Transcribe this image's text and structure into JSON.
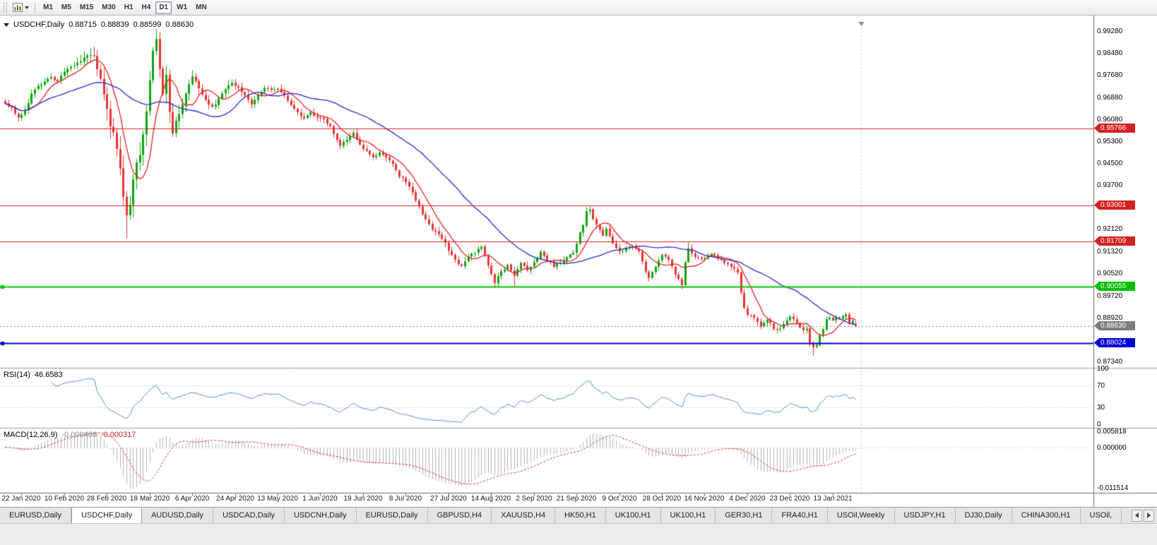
{
  "toolbar": {
    "timeframes": [
      {
        "label": "M1",
        "active": false
      },
      {
        "label": "M5",
        "active": false
      },
      {
        "label": "M15",
        "active": false
      },
      {
        "label": "M30",
        "active": false
      },
      {
        "label": "H1",
        "active": false
      },
      {
        "label": "H4",
        "active": false
      },
      {
        "label": "D1",
        "active": true
      },
      {
        "label": "W1",
        "active": false
      },
      {
        "label": "MN",
        "active": false
      }
    ]
  },
  "chart": {
    "title": {
      "symbol": "USDCHF,Daily",
      "open": "0.88715",
      "high": "0.88839",
      "low": "0.88599",
      "close": "0.88630"
    },
    "price_axis": {
      "grid_labels": [
        "0.99280",
        "0.98480",
        "0.97680",
        "0.96880",
        "0.96080",
        "0.95300",
        "0.94500",
        "0.93700",
        "0.92120",
        "0.91320",
        "0.90520",
        "0.89720",
        "0.88920",
        "0.87340"
      ]
    },
    "hlines": [
      {
        "label": "0.95766",
        "value": 0.95766,
        "color": "#d42020",
        "width": 1
      },
      {
        "label": "0.93001",
        "value": 0.93001,
        "color": "#d42020",
        "width": 1
      },
      {
        "label": "0.91709",
        "value": 0.91709,
        "color": "#d42020",
        "width": 1
      },
      {
        "label": "0.90055",
        "value": 0.90055,
        "color": "#00c000",
        "width": 2,
        "handle": true
      },
      {
        "label": "0.88024",
        "value": 0.88024,
        "color": "#0000d2",
        "width": 2,
        "handle": true
      }
    ],
    "current_price": {
      "label": "0.88630",
      "value": 0.8863,
      "color": "#7d7d7d"
    },
    "date_axis": {
      "labels": [
        {
          "text": "22 Jan 2020",
          "bar": 5
        },
        {
          "text": "10 Feb 2020",
          "bar": 18
        },
        {
          "text": "28 Feb 2020",
          "bar": 31
        },
        {
          "text": "18 Mar 2020",
          "bar": 44
        },
        {
          "text": "6 Apr 2020",
          "bar": 57
        },
        {
          "text": "24 Apr 2020",
          "bar": 70
        },
        {
          "text": "13 May 2020",
          "bar": 83
        },
        {
          "text": "1 Jun 2020",
          "bar": 96
        },
        {
          "text": "19 Jun 2020",
          "bar": 109
        },
        {
          "text": "8 Jul 2020",
          "bar": 122
        },
        {
          "text": "27 Jul 2020",
          "bar": 135
        },
        {
          "text": "14 Aug 2020",
          "bar": 148
        },
        {
          "text": "2 Sep 2020",
          "bar": 161
        },
        {
          "text": "21 Sep 2020",
          "bar": 174
        },
        {
          "text": "9 Oct 2020",
          "bar": 187
        },
        {
          "text": "28 Oct 2020",
          "bar": 200
        },
        {
          "text": "16 Nov 2020",
          "bar": 213
        },
        {
          "text": "4 Dec 2020",
          "bar": 226
        },
        {
          "text": "23 Dec 2020",
          "bar": 239
        },
        {
          "text": "13 Jan 2021",
          "bar": 252
        }
      ]
    }
  },
  "indicators": {
    "rsi": {
      "name": "RSI(14)",
      "value": "46.6583",
      "color": "#4a8fd0",
      "period": 14,
      "axis_labels": [
        {
          "text": "100",
          "value": 100
        },
        {
          "text": "70",
          "value": 70
        },
        {
          "text": "30",
          "value": 30
        },
        {
          "text": "0",
          "value": 0
        }
      ],
      "levels": [
        70,
        30
      ]
    },
    "macd": {
      "name": "MACD(12,26,9)",
      "value_main": "-0.000466",
      "value_signal": "-0.000317",
      "fast": 12,
      "slow": 26,
      "signal": 9,
      "hist_color": "#b2b2b2",
      "signal_color": "#d23333",
      "axis_labels": {
        "max": "0.005818",
        "zero": "0.000000",
        "min": "-0.011514"
      }
    }
  },
  "chart_data": {
    "type": "candlestick",
    "symbol": "USDCHF",
    "timeframe": "Daily",
    "bars_visible": 260,
    "last_bar": {
      "open": 0.88715,
      "high": 0.88839,
      "low": 0.88599,
      "close": 0.8863
    },
    "price_range_view": {
      "top": 0.9965,
      "bottom": 0.8716
    },
    "colors": {
      "bull": "#0da40d",
      "bear": "#e53535",
      "ma_fast": "#e32222",
      "ma_slow": "#2929cc"
    },
    "moving_averages": [
      {
        "period": 8,
        "color": "#e32222"
      },
      {
        "period": 34,
        "color": "#2929cc"
      }
    ],
    "close_keyframes": [
      [
        0,
        0.967
      ],
      [
        2,
        0.9652
      ],
      [
        4,
        0.9618
      ],
      [
        6,
        0.9645
      ],
      [
        8,
        0.97
      ],
      [
        10,
        0.9728
      ],
      [
        12,
        0.9745
      ],
      [
        14,
        0.9762
      ],
      [
        16,
        0.975
      ],
      [
        18,
        0.9778
      ],
      [
        20,
        0.98
      ],
      [
        23,
        0.9822
      ],
      [
        26,
        0.9846
      ],
      [
        27,
        0.9838
      ],
      [
        28,
        0.9792
      ],
      [
        29,
        0.9762
      ],
      [
        30,
        0.9705
      ],
      [
        31,
        0.9648
      ],
      [
        32,
        0.9582
      ],
      [
        33,
        0.956
      ],
      [
        34,
        0.9502
      ],
      [
        35,
        0.9434
      ],
      [
        36,
        0.933
      ],
      [
        37,
        0.9262
      ],
      [
        38,
        0.93
      ],
      [
        39,
        0.9392
      ],
      [
        40,
        0.945
      ],
      [
        41,
        0.9482
      ],
      [
        42,
        0.956
      ],
      [
        43,
        0.9642
      ],
      [
        44,
        0.9752
      ],
      [
        45,
        0.9862
      ],
      [
        46,
        0.9898
      ],
      [
        47,
        0.9792
      ],
      [
        48,
        0.97
      ],
      [
        49,
        0.9772
      ],
      [
        50,
        0.964
      ],
      [
        51,
        0.9562
      ],
      [
        52,
        0.961
      ],
      [
        53,
        0.9632
      ],
      [
        55,
        0.97
      ],
      [
        57,
        0.9768
      ],
      [
        59,
        0.9722
      ],
      [
        61,
        0.9682
      ],
      [
        63,
        0.9652
      ],
      [
        65,
        0.9682
      ],
      [
        67,
        0.972
      ],
      [
        69,
        0.9744
      ],
      [
        71,
        0.9726
      ],
      [
        73,
        0.97
      ],
      [
        75,
        0.9662
      ],
      [
        77,
        0.97
      ],
      [
        79,
        0.9722
      ],
      [
        81,
        0.9714
      ],
      [
        83,
        0.9718
      ],
      [
        85,
        0.97
      ],
      [
        87,
        0.9662
      ],
      [
        89,
        0.9632
      ],
      [
        91,
        0.9612
      ],
      [
        93,
        0.964
      ],
      [
        95,
        0.9614
      ],
      [
        97,
        0.9608
      ],
      [
        99,
        0.9586
      ],
      [
        100,
        0.956
      ],
      [
        102,
        0.9512
      ],
      [
        104,
        0.954
      ],
      [
        106,
        0.9562
      ],
      [
        108,
        0.952
      ],
      [
        110,
        0.9496
      ],
      [
        112,
        0.9474
      ],
      [
        114,
        0.949
      ],
      [
        116,
        0.9472
      ],
      [
        118,
        0.9452
      ],
      [
        120,
        0.9404
      ],
      [
        122,
        0.9386
      ],
      [
        124,
        0.9342
      ],
      [
        126,
        0.9292
      ],
      [
        128,
        0.9252
      ],
      [
        130,
        0.9212
      ],
      [
        132,
        0.9192
      ],
      [
        134,
        0.9162
      ],
      [
        135,
        0.9138
      ],
      [
        137,
        0.9102
      ],
      [
        139,
        0.9082
      ],
      [
        141,
        0.9112
      ],
      [
        143,
        0.9132
      ],
      [
        145,
        0.9152
      ],
      [
        147,
        0.9082
      ],
      [
        149,
        0.9022
      ],
      [
        151,
        0.9062
      ],
      [
        153,
        0.9082
      ],
      [
        155,
        0.9042
      ],
      [
        157,
        0.9092
      ],
      [
        159,
        0.9062
      ],
      [
        161,
        0.9092
      ],
      [
        163,
        0.9132
      ],
      [
        165,
        0.9102
      ],
      [
        167,
        0.9082
      ],
      [
        169,
        0.9092
      ],
      [
        171,
        0.9112
      ],
      [
        173,
        0.9132
      ],
      [
        174,
        0.9162
      ],
      [
        175,
        0.9202
      ],
      [
        176,
        0.9232
      ],
      [
        177,
        0.9282
      ],
      [
        178,
        0.9288
      ],
      [
        179,
        0.9252
      ],
      [
        180,
        0.9232
      ],
      [
        181,
        0.9212
      ],
      [
        182,
        0.9192
      ],
      [
        183,
        0.9212
      ],
      [
        185,
        0.9162
      ],
      [
        187,
        0.9132
      ],
      [
        189,
        0.9142
      ],
      [
        191,
        0.9152
      ],
      [
        193,
        0.9132
      ],
      [
        195,
        0.9062
      ],
      [
        196,
        0.9042
      ],
      [
        198,
        0.9082
      ],
      [
        200,
        0.9122
      ],
      [
        202,
        0.9102
      ],
      [
        204,
        0.9052
      ],
      [
        206,
        0.9012
      ],
      [
        207,
        0.9095
      ],
      [
        208,
        0.9142
      ],
      [
        210,
        0.9112
      ],
      [
        213,
        0.9106
      ],
      [
        215,
        0.9122
      ],
      [
        217,
        0.9112
      ],
      [
        219,
        0.9092
      ],
      [
        221,
        0.9082
      ],
      [
        223,
        0.9062
      ],
      [
        224,
        0.8982
      ],
      [
        225,
        0.8932
      ],
      [
        226,
        0.8906
      ],
      [
        228,
        0.8892
      ],
      [
        230,
        0.8866
      ],
      [
        232,
        0.8886
      ],
      [
        234,
        0.8856
      ],
      [
        236,
        0.8852
      ],
      [
        238,
        0.8882
      ],
      [
        239,
        0.8902
      ],
      [
        240,
        0.8892
      ],
      [
        241,
        0.8872
      ],
      [
        242,
        0.8856
      ],
      [
        243,
        0.8846
      ],
      [
        244,
        0.8852
      ],
      [
        245,
        0.8802
      ],
      [
        246,
        0.8786
      ],
      [
        247,
        0.8792
      ],
      [
        248,
        0.8832
      ],
      [
        249,
        0.8852
      ],
      [
        250,
        0.8886
      ],
      [
        251,
        0.8892
      ],
      [
        252,
        0.8882
      ],
      [
        253,
        0.8896
      ],
      [
        254,
        0.8886
      ],
      [
        255,
        0.8902
      ],
      [
        256,
        0.8906
      ],
      [
        257,
        0.8872
      ],
      [
        258,
        0.8886
      ],
      [
        259,
        0.8863
      ]
    ],
    "forced_extremes": [
      {
        "bar": 4,
        "low": 0.9612
      },
      {
        "bar": 26,
        "high": 0.9848
      },
      {
        "bar": 37,
        "low": 0.9182
      },
      {
        "bar": 46,
        "high": 0.9916
      },
      {
        "bar": 149,
        "low": 0.9001
      },
      {
        "bar": 155,
        "low": 0.9006
      },
      {
        "bar": 178,
        "high": 0.9296
      },
      {
        "bar": 206,
        "low": 0.8998
      },
      {
        "bar": 208,
        "high": 0.9166
      },
      {
        "bar": 246,
        "low": 0.8757
      }
    ],
    "volatility_keyframes": [
      [
        0,
        0.0016
      ],
      [
        22,
        0.002
      ],
      [
        30,
        0.005
      ],
      [
        48,
        0.0045
      ],
      [
        58,
        0.0024
      ],
      [
        80,
        0.0016
      ],
      [
        110,
        0.0015
      ],
      [
        140,
        0.0017
      ],
      [
        170,
        0.0015
      ],
      [
        200,
        0.0014
      ],
      [
        225,
        0.0016
      ],
      [
        245,
        0.0014
      ],
      [
        259,
        0.0009
      ]
    ]
  },
  "tabbar": {
    "tabs": [
      {
        "label": "EURUSD,Daily",
        "active": false
      },
      {
        "label": "USDCHF,Daily",
        "active": true
      },
      {
        "label": "AUDUSD,Daily",
        "active": false
      },
      {
        "label": "USDCAD,Daily",
        "active": false
      },
      {
        "label": "USDCNH,Daily",
        "active": false
      },
      {
        "label": "EURUSD,Daily",
        "active": false
      },
      {
        "label": "GBPUSD,H4",
        "active": false
      },
      {
        "label": "XAUUSD,H4",
        "active": false
      },
      {
        "label": "HK50,H1",
        "active": false
      },
      {
        "label": "UK100,H1",
        "active": false
      },
      {
        "label": "UK100,H1",
        "active": false
      },
      {
        "label": "GER30,H1",
        "active": false
      },
      {
        "label": "FRA40,H1",
        "active": false
      },
      {
        "label": "USOil,Weekly",
        "active": false
      },
      {
        "label": "USDJPY,H1",
        "active": false
      },
      {
        "label": "DJ30,Daily",
        "active": false
      },
      {
        "label": "CHINA300,H1",
        "active": false
      },
      {
        "label": "USOil,",
        "active": false
      }
    ]
  }
}
